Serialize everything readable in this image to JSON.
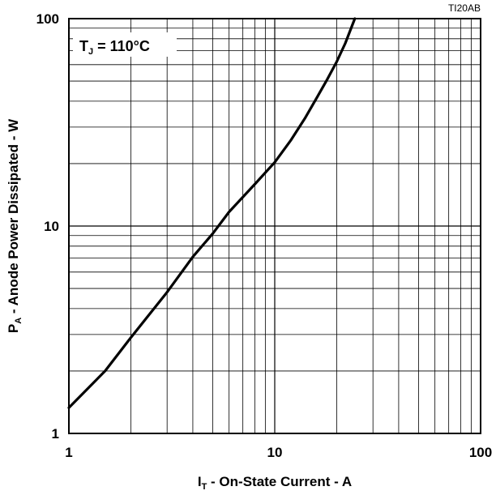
{
  "figure_id": "TI20AB",
  "chart_data": {
    "type": "line",
    "title": "",
    "annotation": {
      "main": "T",
      "sub": "J",
      "rest": " = 110°C"
    },
    "xlabel": {
      "main": "I",
      "sub": "T",
      "rest": " - On-State Current - A"
    },
    "ylabel": {
      "main": "P",
      "sub": "A",
      "rest": " - Anode Power Dissipated - W"
    },
    "xscale": "log",
    "yscale": "log",
    "xlim": [
      1,
      100
    ],
    "ylim": [
      1,
      100
    ],
    "xticks": [
      {
        "value": 1,
        "label": "1"
      },
      {
        "value": 10,
        "label": "10"
      },
      {
        "value": 100,
        "label": "100"
      }
    ],
    "yticks": [
      {
        "value": 1,
        "label": "1"
      },
      {
        "value": 10,
        "label": "10"
      },
      {
        "value": 100,
        "label": "100"
      }
    ],
    "grid": true,
    "series": [
      {
        "x": [
          1,
          1.5,
          2,
          3,
          4,
          5,
          6,
          8,
          10,
          12,
          14,
          16,
          18,
          20,
          22,
          24.5
        ],
        "y": [
          1.33,
          2.0,
          2.9,
          4.8,
          7.1,
          9.2,
          11.7,
          15.9,
          20.3,
          26.0,
          33.0,
          41.5,
          51.0,
          62.0,
          76.0,
          100.0
        ]
      }
    ]
  }
}
